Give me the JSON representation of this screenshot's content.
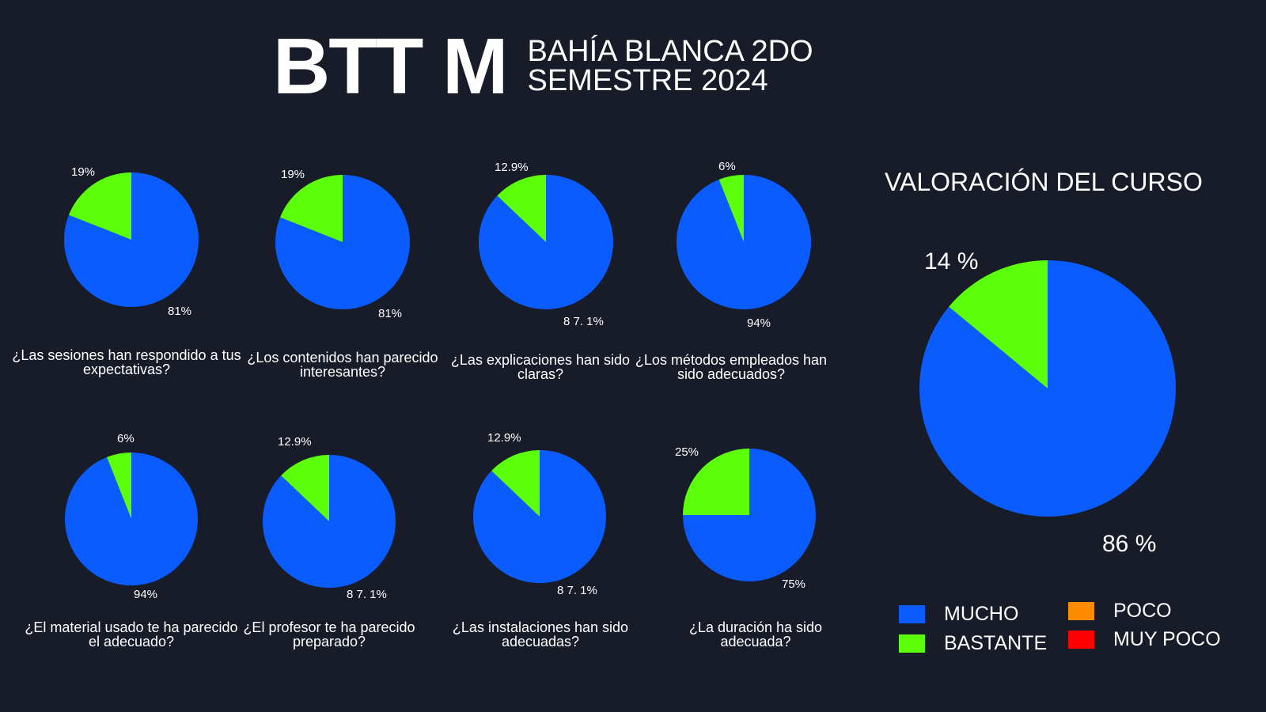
{
  "header": {
    "brand": "BTT M",
    "subtitle_line1": "BAHÍA BLANCA  2DO",
    "subtitle_line2": "SEMESTRE 2024"
  },
  "colors": {
    "background": "#181c28",
    "mucho": "#0a5cff",
    "bastante": "#5cff0a",
    "poco": "#ff8c00",
    "muy_poco": "#ff0000"
  },
  "chart_data": [
    {
      "type": "pie",
      "title": "¿Las sesiones han respondido a tus expectativas?",
      "categories": [
        "MUCHO",
        "BASTANTE"
      ],
      "values": [
        81,
        19
      ],
      "labels": [
        "81%",
        "19%"
      ]
    },
    {
      "type": "pie",
      "title": "¿Los contenidos han parecido interesantes?",
      "categories": [
        "MUCHO",
        "BASTANTE"
      ],
      "values": [
        81,
        19
      ],
      "labels": [
        "81%",
        "19%"
      ]
    },
    {
      "type": "pie",
      "title": "¿Las explicaciones han sido claras?",
      "categories": [
        "MUCHO",
        "BASTANTE"
      ],
      "values": [
        87.1,
        12.9
      ],
      "labels": [
        "8 7. 1%",
        "12.9%"
      ]
    },
    {
      "type": "pie",
      "title": "¿Los métodos empleados han sido adecuados?",
      "categories": [
        "MUCHO",
        "BASTANTE"
      ],
      "values": [
        94,
        6
      ],
      "labels": [
        "94%",
        "6%"
      ]
    },
    {
      "type": "pie",
      "title": "¿El material usado te ha parecido el adecuado?",
      "categories": [
        "MUCHO",
        "BASTANTE"
      ],
      "values": [
        94,
        6
      ],
      "labels": [
        "94%",
        "6%"
      ]
    },
    {
      "type": "pie",
      "title": "¿El profesor te ha parecido preparado?",
      "categories": [
        "MUCHO",
        "BASTANTE"
      ],
      "values": [
        87.1,
        12.9
      ],
      "labels": [
        "8 7. 1%",
        "12.9%"
      ]
    },
    {
      "type": "pie",
      "title": "¿Las instalaciones han sido adecuadas?",
      "categories": [
        "MUCHO",
        "BASTANTE"
      ],
      "values": [
        87.1,
        12.9
      ],
      "labels": [
        "8 7. 1%",
        "12.9%"
      ]
    },
    {
      "type": "pie",
      "title": "¿La duración ha sido adecuada?",
      "categories": [
        "MUCHO",
        "BASTANTE"
      ],
      "values": [
        75,
        25
      ],
      "labels": [
        "75%",
        "25%"
      ]
    },
    {
      "type": "pie",
      "title": "VALORACIÓN DEL CURSO",
      "categories": [
        "MUCHO",
        "BASTANTE"
      ],
      "values": [
        86,
        14
      ],
      "labels": [
        "86 %",
        "14 %"
      ]
    }
  ],
  "legend": [
    {
      "label": "MUCHO",
      "color": "#0a5cff"
    },
    {
      "label": "BASTANTE",
      "color": "#5cff0a"
    },
    {
      "label": "POCO",
      "color": "#ff8c00"
    },
    {
      "label": "MUY POCO",
      "color": "#ff0000"
    }
  ]
}
